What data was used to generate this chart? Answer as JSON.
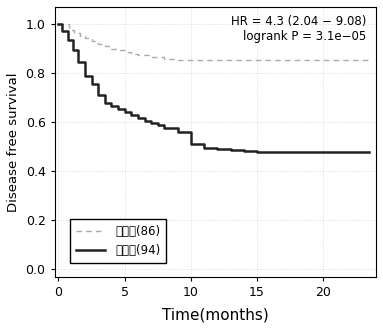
{
  "title": "",
  "xlabel": "Time(months)",
  "ylabel": "Disease free survival",
  "annotation_line1": "HR = 4.3 (2.04 − 9.08)",
  "annotation_line2": "logrank P = 3.1e−05",
  "low_risk_label": "低危组(86)",
  "high_risk_label": "高危组(94)",
  "low_risk_color": "#aaaaaa",
  "high_risk_color": "#222222",
  "xlim": [
    -0.3,
    24
  ],
  "ylim": [
    -0.03,
    1.07
  ],
  "xticks": [
    0,
    5,
    10,
    15,
    20
  ],
  "yticks": [
    0.0,
    0.2,
    0.4,
    0.6,
    0.8,
    1.0
  ],
  "low_risk_x": [
    0,
    0.3,
    0.8,
    1.2,
    1.6,
    2.0,
    2.5,
    3.0,
    3.5,
    4.0,
    4.5,
    5.0,
    5.5,
    6.0,
    7.0,
    8.0,
    9.0,
    10.0,
    11.0,
    12.5,
    23.5
  ],
  "low_risk_y": [
    1.0,
    1.0,
    0.977,
    0.965,
    0.953,
    0.942,
    0.93,
    0.92,
    0.91,
    0.9,
    0.893,
    0.886,
    0.879,
    0.872,
    0.865,
    0.858,
    0.855,
    0.855,
    0.855,
    0.855,
    0.855
  ],
  "high_risk_x": [
    0,
    0.3,
    0.7,
    1.1,
    1.5,
    2.0,
    2.5,
    3.0,
    3.5,
    4.0,
    4.5,
    5.0,
    5.5,
    6.0,
    6.5,
    7.0,
    7.5,
    8.0,
    9.0,
    10.0,
    11.0,
    12.0,
    13.0,
    14.0,
    15.0,
    23.5
  ],
  "high_risk_y": [
    1.0,
    0.97,
    0.935,
    0.895,
    0.845,
    0.79,
    0.755,
    0.71,
    0.68,
    0.668,
    0.655,
    0.643,
    0.63,
    0.617,
    0.606,
    0.596,
    0.59,
    0.575,
    0.56,
    0.51,
    0.495,
    0.49,
    0.487,
    0.484,
    0.48,
    0.48
  ],
  "figsize": [
    3.83,
    3.29
  ],
  "dpi": 100
}
